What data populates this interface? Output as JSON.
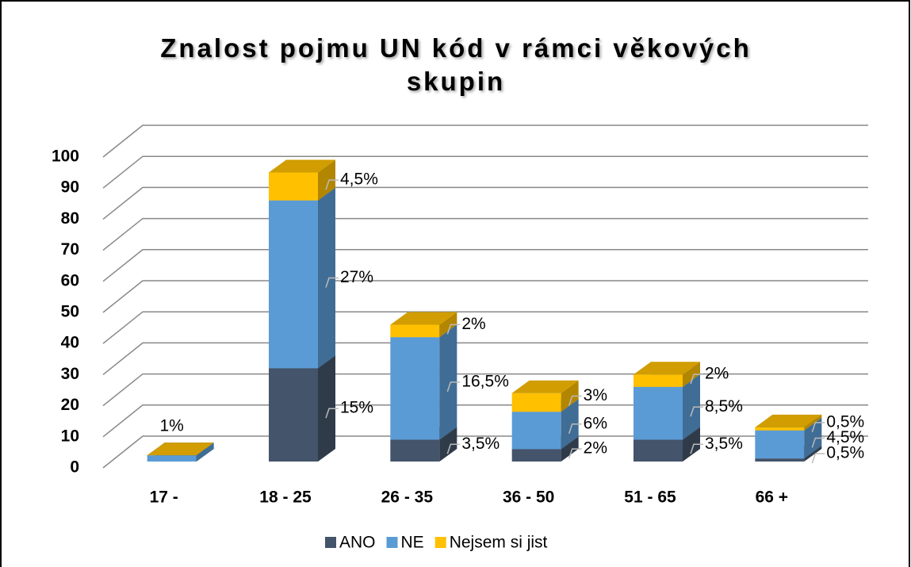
{
  "chart_data": {
    "type": "bar3d_stacked",
    "title": "Znalost pojmu UN kód v rámci věkových skupin",
    "categories": [
      "17 -",
      "18 - 25",
      "26 - 35",
      "36 - 50",
      "51 - 65",
      "66 +"
    ],
    "series": [
      {
        "name": "ANO",
        "color": "#44546a",
        "values": [
          0,
          30,
          7,
          4,
          7,
          1
        ],
        "value_labels": [
          null,
          "15%",
          "3,5%",
          "2%",
          "3,5%",
          "0,5%"
        ]
      },
      {
        "name": "NE",
        "color": "#5b9bd5",
        "values": [
          2,
          54,
          33,
          12,
          17,
          9
        ],
        "value_labels": [
          "1%",
          "27%",
          "16,5%",
          "6%",
          "8,5%",
          "4,5%"
        ]
      },
      {
        "name": "Nejsem si jist",
        "color": "#ffc000",
        "values": [
          0,
          9,
          4,
          6,
          4,
          1
        ],
        "value_labels": [
          null,
          "4,5%",
          "2%",
          "3%",
          "2%",
          "0,5%"
        ]
      }
    ],
    "ylim": [
      0,
      100
    ],
    "yticks": [
      0,
      10,
      20,
      30,
      40,
      50,
      60,
      70,
      80,
      90,
      100
    ],
    "grid": true,
    "legend": "bottom"
  }
}
